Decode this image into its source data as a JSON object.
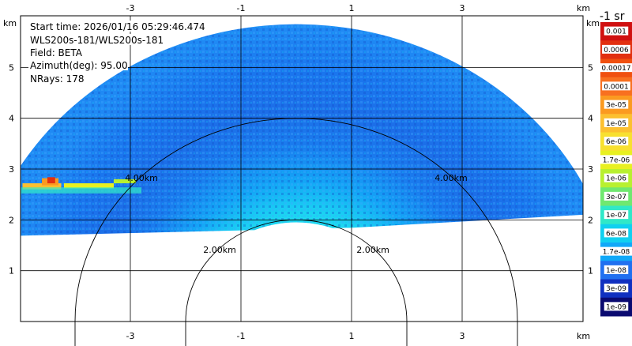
{
  "info": {
    "start_time": "Start time: 2026/01/16 05:29:46.474",
    "instrument": "WLS200s-181/WLS200s-181",
    "field": "Field: BETA",
    "azimuth": "Azimuth(deg): 95.00",
    "nrays": "NRays: 178"
  },
  "colorbar": {
    "units_label": "-1 sr",
    "labels": [
      "0.001",
      "0.0006",
      "0.00017",
      "0.0001",
      "3e-05",
      "1e-05",
      "6e-06",
      "1.7e-06",
      "1e-06",
      "3e-07",
      "1e-07",
      "6e-08",
      "1.7e-08",
      "1e-08",
      "3e-09",
      "1e-09"
    ],
    "colors": [
      "#d01010",
      "#e23010",
      "#f05010",
      "#f87020",
      "#fb9a20",
      "#fcc030",
      "#f8e030",
      "#e8f020",
      "#b8f030",
      "#70e870",
      "#30e8c8",
      "#10d0f0",
      "#10a8f8",
      "#2070f0",
      "#1030c0",
      "#0a0a70"
    ]
  },
  "chart_data": {
    "type": "heatmap",
    "title": "",
    "field": "BETA",
    "xlabel": "km",
    "ylabel": "km",
    "xlim": [
      -5.0,
      5.4
    ],
    "ylim": [
      0.0,
      5.8
    ],
    "x_ticks": [
      -3,
      -1,
      1,
      3
    ],
    "y_ticks": [
      1,
      2,
      3,
      4,
      5
    ],
    "range_rings": [
      {
        "radius_km": 2.0,
        "label": "2.00km"
      },
      {
        "radius_km": 4.0,
        "label": "4.00km"
      }
    ],
    "radar_origin_km": [
      0.0,
      0.0
    ],
    "scan_sector_radius_km": [
      1.95,
      5.85
    ],
    "grid": true
  }
}
